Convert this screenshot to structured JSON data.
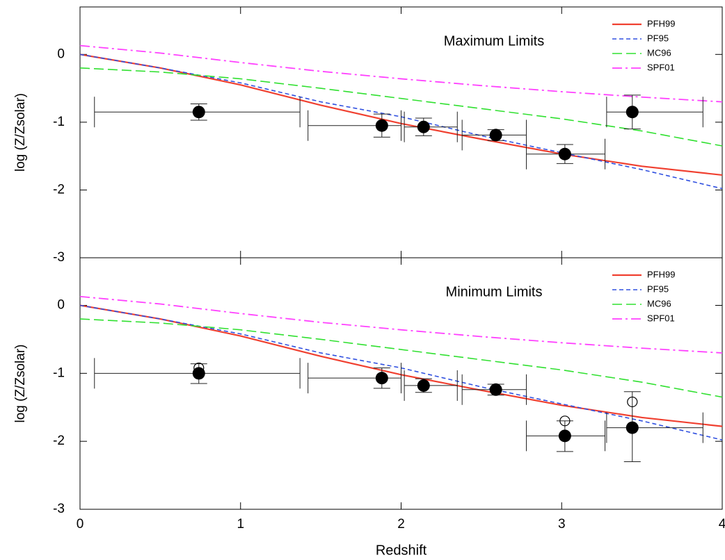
{
  "chart_data": [
    {
      "type": "line",
      "annotation": "Maximum Limits",
      "ylabel": "log (Z/Zsolar)",
      "xlim": [
        0,
        4
      ],
      "ylim": [
        -3,
        0.7
      ],
      "xticks": [
        0,
        1,
        2,
        3,
        4
      ],
      "xtick_labels": false,
      "yticks": [
        -3,
        -2,
        -1,
        0
      ],
      "grid": false,
      "legend": "upper right",
      "x": [
        0,
        0.5,
        1,
        1.5,
        2,
        2.5,
        3,
        3.5,
        4
      ],
      "series": [
        {
          "name": "PFH99",
          "color": "#f04030",
          "values": [
            0,
            -0.2,
            -0.45,
            -0.75,
            -1.02,
            -1.25,
            -1.47,
            -1.65,
            -1.78
          ]
        },
        {
          "name": "PF95",
          "color": "#3050e0",
          "values": [
            0,
            -0.2,
            -0.42,
            -0.7,
            -0.92,
            -1.2,
            -1.45,
            -1.7,
            -1.98
          ]
        },
        {
          "name": "MC96",
          "color": "#30e030",
          "values": [
            -0.2,
            -0.26,
            -0.36,
            -0.5,
            -0.65,
            -0.8,
            -0.95,
            -1.13,
            -1.35
          ]
        },
        {
          "name": "SPF01",
          "color": "#ff40ff",
          "values": [
            0.13,
            0.02,
            -0.12,
            -0.25,
            -0.36,
            -0.46,
            -0.55,
            -0.63,
            -0.7
          ]
        }
      ],
      "points": {
        "x": [
          0.74,
          1.88,
          2.14,
          2.59,
          3.02,
          3.44
        ],
        "values": [
          -0.85,
          -1.05,
          -1.07,
          -1.19,
          -1.47,
          -0.85
        ],
        "xmin": [
          0.09,
          1.42,
          2.02,
          2.38,
          2.78,
          3.28
        ],
        "xmax": [
          1.37,
          2.0,
          2.35,
          2.78,
          3.27,
          3.88
        ],
        "ymin": [
          -0.97,
          -1.22,
          -1.2,
          -1.27,
          -1.61,
          -1.1
        ],
        "ymax": [
          -0.73,
          -0.88,
          -0.94,
          -1.11,
          -1.33,
          -0.6
        ]
      }
    },
    {
      "type": "line",
      "annotation": "Minimum Limits",
      "ylabel": "log (Z/Zsolar)",
      "xlabel": "Redshift",
      "xlim": [
        0,
        4
      ],
      "ylim": [
        -3,
        0.7
      ],
      "xticks": [
        0,
        1,
        2,
        3,
        4
      ],
      "xtick_labels": true,
      "yticks": [
        -3,
        -2,
        -1,
        0
      ],
      "grid": false,
      "legend": "upper right",
      "x": [
        0,
        0.5,
        1,
        1.5,
        2,
        2.5,
        3,
        3.5,
        4
      ],
      "series": [
        {
          "name": "PFH99",
          "color": "#f04030",
          "values": [
            0,
            -0.2,
            -0.45,
            -0.75,
            -1.02,
            -1.25,
            -1.47,
            -1.65,
            -1.78
          ]
        },
        {
          "name": "PF95",
          "color": "#3050e0",
          "values": [
            0,
            -0.2,
            -0.42,
            -0.7,
            -0.92,
            -1.2,
            -1.45,
            -1.7,
            -1.98
          ]
        },
        {
          "name": "MC96",
          "color": "#30e030",
          "values": [
            -0.2,
            -0.26,
            -0.36,
            -0.5,
            -0.65,
            -0.8,
            -0.95,
            -1.13,
            -1.35
          ]
        },
        {
          "name": "SPF01",
          "color": "#ff40ff",
          "values": [
            0.13,
            0.02,
            -0.12,
            -0.25,
            -0.36,
            -0.46,
            -0.55,
            -0.63,
            -0.7
          ]
        }
      ],
      "points": {
        "x": [
          0.74,
          1.88,
          2.14,
          2.59,
          3.02,
          3.44
        ],
        "values": [
          -1.0,
          -1.07,
          -1.18,
          -1.24,
          -1.92,
          -1.8
        ],
        "xmin": [
          0.09,
          1.42,
          2.02,
          2.38,
          2.78,
          3.28
        ],
        "xmax": [
          1.37,
          2.0,
          2.35,
          2.78,
          3.27,
          3.88
        ],
        "ymin": [
          -1.15,
          -1.22,
          -1.28,
          -1.32,
          -2.15,
          -2.3
        ],
        "ymax": [
          -0.86,
          -0.92,
          -1.08,
          -1.16,
          -1.7,
          -1.27
        ]
      },
      "open_points": {
        "x": [
          0.74,
          3.02,
          3.44
        ],
        "values": [
          -0.92,
          -1.7,
          -1.42
        ]
      }
    }
  ]
}
